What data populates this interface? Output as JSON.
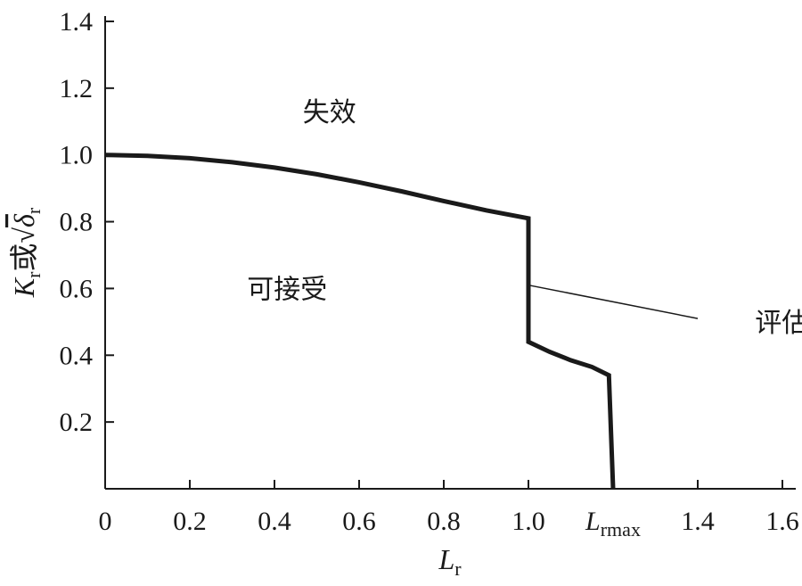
{
  "chart_data": {
    "type": "line",
    "xlabel": "L",
    "xlabel_sub": "r",
    "ylabel_parts": {
      "k": "K",
      "k_sub": "r",
      "or": "或",
      "root": "√",
      "delta": "δ",
      "delta_sub": "r"
    },
    "xlim": [
      0,
      1.65
    ],
    "ylim": [
      0,
      1.4
    ],
    "x_ticks": [
      {
        "value": 0,
        "label": "0"
      },
      {
        "value": 0.2,
        "label": "0.2"
      },
      {
        "value": 0.4,
        "label": "0.4"
      },
      {
        "value": 0.6,
        "label": "0.6"
      },
      {
        "value": 0.8,
        "label": "0.8"
      },
      {
        "value": 1.0,
        "label": "1.0"
      },
      {
        "value": 1.2,
        "label": "L",
        "sub": "rmax"
      },
      {
        "value": 1.4,
        "label": "1.4"
      },
      {
        "value": 1.6,
        "label": "1.6"
      }
    ],
    "y_ticks": [
      {
        "value": 0.2,
        "label": "0.2"
      },
      {
        "value": 0.4,
        "label": "0.4"
      },
      {
        "value": 0.6,
        "label": "0.6"
      },
      {
        "value": 0.8,
        "label": "0.8"
      },
      {
        "value": 1.0,
        "label": "1.0"
      },
      {
        "value": 1.2,
        "label": "1.2"
      },
      {
        "value": 1.4,
        "label": "1.4"
      }
    ],
    "series": [
      {
        "points": [
          [
            0,
            1.0
          ],
          [
            0.1,
            0.997
          ],
          [
            0.2,
            0.99
          ],
          [
            0.3,
            0.978
          ],
          [
            0.4,
            0.962
          ],
          [
            0.5,
            0.942
          ],
          [
            0.6,
            0.918
          ],
          [
            0.7,
            0.891
          ],
          [
            0.8,
            0.862
          ],
          [
            0.9,
            0.834
          ],
          [
            1.0,
            0.81
          ],
          [
            1.0,
            0.44
          ],
          [
            1.05,
            0.41
          ],
          [
            1.1,
            0.385
          ],
          [
            1.15,
            0.365
          ],
          [
            1.19,
            0.34
          ],
          [
            1.2,
            0.0
          ]
        ],
        "color": "#1a1a1a"
      }
    ],
    "annotations": {
      "failure": {
        "text": "失效",
        "x": 0.53,
        "y": 1.13
      },
      "acceptable": {
        "text": "可接受",
        "x": 0.43,
        "y": 0.6
      },
      "assessment_line": {
        "text": "评估线",
        "x": 1.63,
        "y": 0.5,
        "pointer_from": [
          1.0,
          0.61
        ],
        "pointer_to": [
          1.4,
          0.51
        ]
      }
    },
    "grid": false
  }
}
